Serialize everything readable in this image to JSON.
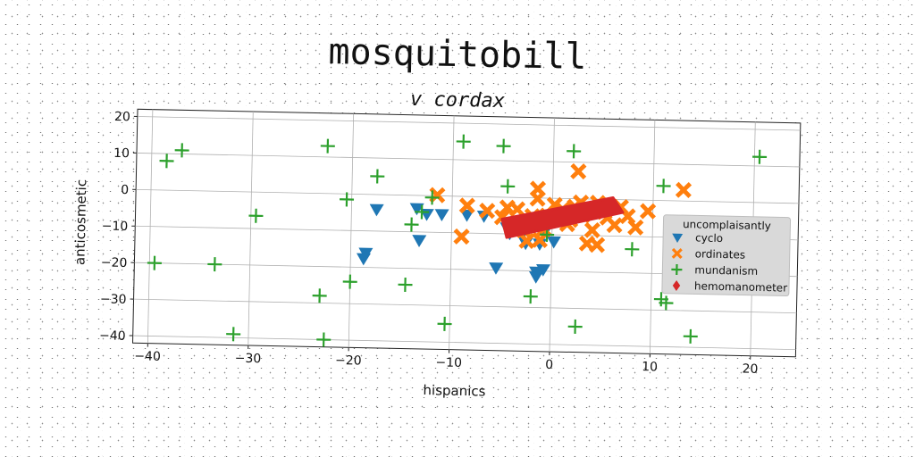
{
  "chart_data": {
    "type": "scatter",
    "title": "mosquitobill",
    "subtitle": "v cordax",
    "xlabel": "hispanics",
    "ylabel": "anticosmetic",
    "xlim": [
      -41.5,
      24.5
    ],
    "ylim": [
      -42,
      22
    ],
    "xticks": [
      -40,
      -30,
      -20,
      -10,
      0,
      10,
      20
    ],
    "yticks": [
      -40,
      -30,
      -20,
      -10,
      0,
      10,
      20
    ],
    "grid": true,
    "legend": {
      "title": "uncomplaisantly",
      "position": "right"
    },
    "series": [
      {
        "name": "cyclo",
        "marker": "triangle-down",
        "color": "#1f77b4",
        "points": [
          [
            -17.5,
            -4
          ],
          [
            -18.5,
            -16
          ],
          [
            -18.7,
            -17.5
          ],
          [
            -13.2,
            -12.2
          ],
          [
            -13.5,
            -3.5
          ],
          [
            -12.5,
            -5
          ],
          [
            -11,
            -5
          ],
          [
            -8.5,
            -5
          ],
          [
            -6.8,
            -5.2
          ],
          [
            -5.5,
            -19.3
          ],
          [
            -4.2,
            -9.8
          ],
          [
            -3,
            -10.2
          ],
          [
            -2.6,
            -12.4
          ],
          [
            -1.2,
            -12.5
          ],
          [
            -1.5,
            -20.2
          ],
          [
            -1.5,
            -21.5
          ],
          [
            -0.8,
            -19.5
          ],
          [
            -0.8,
            -9.5
          ],
          [
            0.2,
            -11.8
          ],
          [
            -4.5,
            -8.3
          ]
        ]
      },
      {
        "name": "ordinates",
        "marker": "x-filled",
        "color": "#ff7f0e",
        "points": [
          [
            -11.5,
            0.2
          ],
          [
            -8.5,
            -2.5
          ],
          [
            -9,
            -11
          ],
          [
            -6.5,
            -3.8
          ],
          [
            -5,
            -5.5
          ],
          [
            -3.8,
            -7.5
          ],
          [
            -3.5,
            -3.2
          ],
          [
            -2.5,
            -11.8
          ],
          [
            -2,
            -5
          ],
          [
            -1.5,
            -0.2
          ],
          [
            -1.2,
            -11.5
          ],
          [
            -0.8,
            -8.5
          ],
          [
            -0.2,
            -6
          ],
          [
            0.5,
            -4.2
          ],
          [
            1,
            -3
          ],
          [
            1.5,
            -7
          ],
          [
            2.2,
            -2.2
          ],
          [
            2.5,
            7.5
          ],
          [
            3,
            -4.5
          ],
          [
            3.5,
            -12.2
          ],
          [
            4,
            -8.5
          ],
          [
            4.5,
            -12.5
          ],
          [
            4.5,
            -1
          ],
          [
            5.5,
            -5
          ],
          [
            6.2,
            -7
          ],
          [
            6.8,
            -2
          ],
          [
            7.5,
            -4.5
          ],
          [
            8.3,
            -7.5
          ],
          [
            9.5,
            -3
          ],
          [
            13,
            3
          ],
          [
            -1.5,
            2.5
          ],
          [
            0.2,
            -1.8
          ],
          [
            -4.5,
            -2.8
          ],
          [
            2.8,
            -1
          ],
          [
            5.2,
            -3.5
          ],
          [
            -2.8,
            -9
          ],
          [
            1.8,
            -5.8
          ],
          [
            -0.5,
            -4.8
          ]
        ]
      },
      {
        "name": "mundanism",
        "marker": "plus",
        "color": "#2ca02c",
        "points": [
          [
            -37,
            11
          ],
          [
            -38.5,
            8
          ],
          [
            -39.5,
            -20
          ],
          [
            -33.5,
            -20
          ],
          [
            -31.5,
            -39
          ],
          [
            -29.5,
            -6.5
          ],
          [
            -22.5,
            -40
          ],
          [
            -22.5,
            13
          ],
          [
            -23,
            -28
          ],
          [
            -20.5,
            -1.5
          ],
          [
            -20,
            -24
          ],
          [
            -17.5,
            5
          ],
          [
            -14.5,
            -24.5
          ],
          [
            -14,
            -8
          ],
          [
            -12,
            -0.5
          ],
          [
            -10.5,
            -35
          ],
          [
            -9,
            15
          ],
          [
            -5,
            14
          ],
          [
            -4.5,
            3
          ],
          [
            -2,
            -27
          ],
          [
            2,
            13
          ],
          [
            2.5,
            -35
          ],
          [
            8,
            -13.5
          ],
          [
            11,
            -27
          ],
          [
            11,
            4
          ],
          [
            11.5,
            -28
          ],
          [
            14,
            -37
          ],
          [
            20.5,
            12.5
          ],
          [
            -0.5,
            -10
          ],
          [
            -13,
            -4.5
          ]
        ]
      },
      {
        "name": "hemomanometer",
        "marker": "diamond-fill",
        "color": "#d62728",
        "polygon": [
          [
            -5,
            -6
          ],
          [
            6,
            0.5
          ],
          [
            7,
            -3.5
          ],
          [
            -4.5,
            -11
          ]
        ]
      }
    ]
  },
  "colors": {
    "cyclo": "#1f77b4",
    "ordinates": "#ff7f0e",
    "mundanism": "#2ca02c",
    "hemomanometer": "#d62728"
  }
}
